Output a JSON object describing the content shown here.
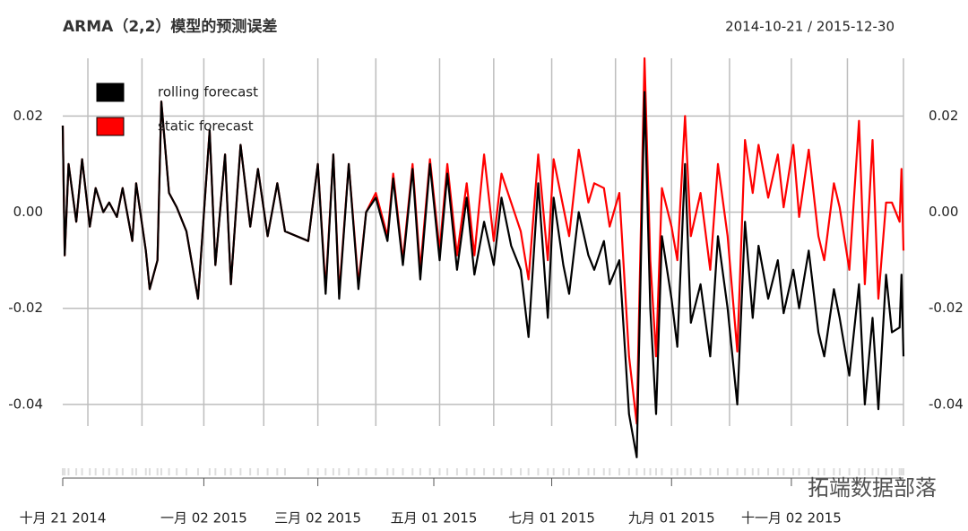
{
  "chart_data": {
    "type": "line",
    "title": "ARMA（2,2）模型的预测误差",
    "subtitle": "2014-10-21 / 2015-12-30",
    "watermark": "拓端数据部落",
    "legend": "top-left",
    "grid": true,
    "xlim": [
      "2014-10-21",
      "2015-12-30"
    ],
    "xticks": [
      {
        "value": "2014-10-21",
        "label": "十月 21 2014"
      },
      {
        "value": "2015-01-02",
        "label": "一月 02 2015"
      },
      {
        "value": "2015-03-02",
        "label": "三月 02 2015"
      },
      {
        "value": "2015-05-01",
        "label": "五月 01 2015"
      },
      {
        "value": "2015-07-01",
        "label": "七月 01 2015"
      },
      {
        "value": "2015-09-01",
        "label": "九月 01 2015"
      },
      {
        "value": "2015-11-02",
        "label": "十一月 02 2015"
      }
    ],
    "xgrid": [
      "2014-11-03",
      "2014-12-01",
      "2015-01-02",
      "2015-02-02",
      "2015-03-02",
      "2015-04-01",
      "2015-05-04",
      "2015-06-01",
      "2015-07-01",
      "2015-08-03",
      "2015-09-01",
      "2015-10-01",
      "2015-11-02",
      "2015-12-01",
      "2015-12-30"
    ],
    "ylim": [
      -0.0445,
      0.032
    ],
    "yticks": [
      0.02,
      {
        "value": 0,
        "label": "0.00"
      },
      -0.02,
      -0.04
    ],
    "x": [
      "2014-10-21",
      "2014-10-22",
      "2014-10-24",
      "2014-10-28",
      "2014-10-31",
      "2014-11-04",
      "2014-11-07",
      "2014-11-11",
      "2014-11-14",
      "2014-11-18",
      "2014-11-21",
      "2014-11-26",
      "2014-11-28",
      "2014-12-03",
      "2014-12-05",
      "2014-12-09",
      "2014-12-11",
      "2014-12-15",
      "2014-12-19",
      "2014-12-24",
      "2014-12-30",
      "2015-01-05",
      "2015-01-08",
      "2015-01-13",
      "2015-01-16",
      "2015-01-21",
      "2015-01-26",
      "2015-01-30",
      "2015-02-04",
      "2015-02-09",
      "2015-02-13",
      "2015-02-25",
      "2015-03-02",
      "2015-03-06",
      "2015-03-10",
      "2015-03-13",
      "2015-03-18",
      "2015-03-23",
      "2015-03-27",
      "2015-04-01",
      "2015-04-07",
      "2015-04-10",
      "2015-04-15",
      "2015-04-20",
      "2015-04-24",
      "2015-04-29",
      "2015-05-04",
      "2015-05-08",
      "2015-05-13",
      "2015-05-18",
      "2015-05-22",
      "2015-05-27",
      "2015-06-01",
      "2015-06-05",
      "2015-06-10",
      "2015-06-15",
      "2015-06-19",
      "2015-06-24",
      "2015-06-29",
      "2015-07-02",
      "2015-07-07",
      "2015-07-10",
      "2015-07-15",
      "2015-07-20",
      "2015-07-23",
      "2015-07-28",
      "2015-07-31",
      "2015-08-05",
      "2015-08-10",
      "2015-08-14",
      "2015-08-18",
      "2015-08-21",
      "2015-08-24",
      "2015-08-27",
      "2015-09-01",
      "2015-09-04",
      "2015-09-08",
      "2015-09-11",
      "2015-09-16",
      "2015-09-21",
      "2015-09-25",
      "2015-09-30",
      "2015-10-05",
      "2015-10-09",
      "2015-10-13",
      "2015-10-16",
      "2015-10-21",
      "2015-10-26",
      "2015-10-29",
      "2015-11-03",
      "2015-11-06",
      "2015-11-11",
      "2015-11-16",
      "2015-11-19",
      "2015-11-24",
      "2015-11-27",
      "2015-12-02",
      "2015-12-07",
      "2015-12-10",
      "2015-12-14",
      "2015-12-17",
      "2015-12-21",
      "2015-12-24",
      "2015-12-28",
      "2015-12-29",
      "2015-12-30"
    ],
    "series": [
      {
        "name": "rolling forecast",
        "color": "#000000",
        "values": [
          0.018,
          -0.009,
          0.01,
          -0.002,
          0.011,
          -0.003,
          0.005,
          0.0,
          0.002,
          -0.001,
          0.005,
          -0.006,
          0.006,
          -0.008,
          -0.016,
          -0.01,
          0.023,
          0.004,
          0.001,
          -0.004,
          -0.018,
          0.017,
          -0.011,
          0.012,
          -0.015,
          0.014,
          -0.003,
          0.009,
          -0.005,
          0.006,
          -0.004,
          -0.006,
          0.01,
          -0.017,
          0.012,
          -0.018,
          0.01,
          -0.016,
          0.0,
          0.003,
          -0.006,
          0.007,
          -0.011,
          0.009,
          -0.014,
          0.01,
          -0.01,
          0.008,
          -0.012,
          0.003,
          -0.013,
          -0.002,
          -0.011,
          0.003,
          -0.007,
          -0.012,
          -0.026,
          0.006,
          -0.022,
          0.003,
          -0.011,
          -0.017,
          0.0,
          -0.009,
          -0.012,
          -0.006,
          -0.015,
          -0.01,
          -0.042,
          -0.051,
          0.025,
          -0.02,
          -0.042,
          -0.005,
          -0.018,
          -0.028,
          0.01,
          -0.023,
          -0.015,
          -0.03,
          -0.005,
          -0.02,
          -0.04,
          -0.002,
          -0.022,
          -0.007,
          -0.018,
          -0.01,
          -0.021,
          -0.012,
          -0.02,
          -0.008,
          -0.025,
          -0.03,
          -0.016,
          -0.022,
          -0.034,
          -0.015,
          -0.04,
          -0.022,
          -0.041,
          -0.013,
          -0.025,
          -0.024,
          -0.013,
          -0.03
        ]
      },
      {
        "name": "static forecast",
        "color": "#ff0000",
        "values": [
          0.018,
          -0.009,
          0.01,
          -0.002,
          0.011,
          -0.003,
          0.005,
          0.0,
          0.002,
          -0.001,
          0.005,
          -0.006,
          0.006,
          -0.008,
          -0.016,
          -0.01,
          0.023,
          0.004,
          0.001,
          -0.004,
          -0.018,
          0.017,
          -0.011,
          0.012,
          -0.015,
          0.014,
          -0.003,
          0.009,
          -0.005,
          0.006,
          -0.004,
          -0.006,
          0.01,
          -0.016,
          0.012,
          -0.017,
          0.01,
          -0.015,
          0.0,
          0.004,
          -0.005,
          0.008,
          -0.01,
          0.01,
          -0.012,
          0.011,
          -0.008,
          0.01,
          -0.009,
          0.006,
          -0.009,
          0.012,
          -0.006,
          0.008,
          0.002,
          -0.004,
          -0.014,
          0.012,
          -0.01,
          0.011,
          0.001,
          -0.005,
          0.013,
          0.002,
          0.006,
          0.005,
          -0.003,
          0.004,
          -0.03,
          -0.044,
          0.032,
          -0.01,
          -0.03,
          0.005,
          -0.003,
          -0.01,
          0.02,
          -0.005,
          0.004,
          -0.012,
          0.01,
          -0.005,
          -0.029,
          0.015,
          0.004,
          0.014,
          0.003,
          0.012,
          0.001,
          0.014,
          -0.001,
          0.013,
          -0.005,
          -0.01,
          0.006,
          0.001,
          -0.012,
          0.019,
          -0.015,
          0.015,
          -0.018,
          0.002,
          0.002,
          -0.002,
          0.009,
          -0.008
        ]
      }
    ]
  }
}
